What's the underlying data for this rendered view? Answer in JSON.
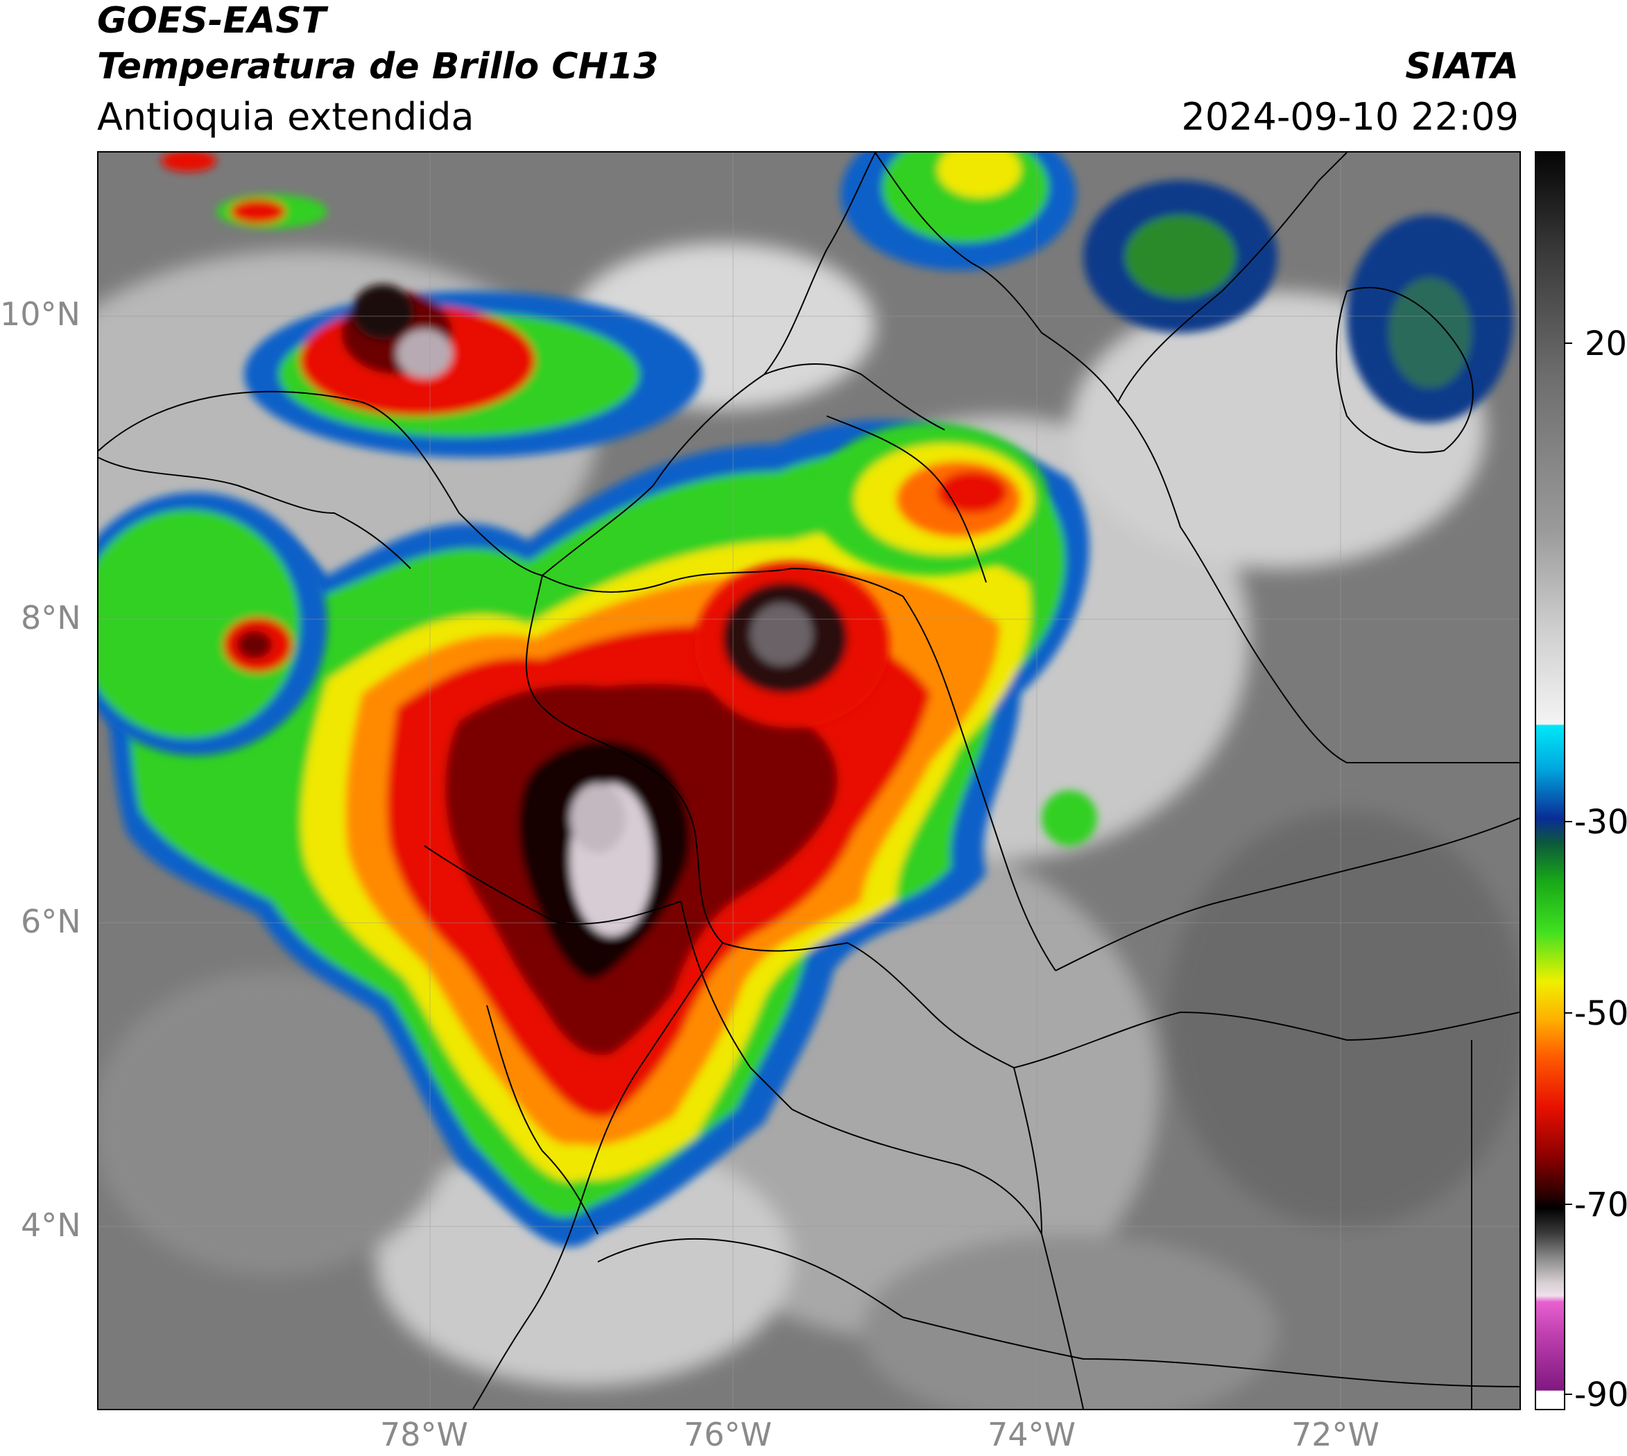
{
  "header": {
    "satellite": "GOES-EAST",
    "product": "Temperatura de Brillo CH13",
    "region": "Antioquia extendida",
    "organization": "SIATA",
    "timestamp": "2024-09-10 22:09"
  },
  "map": {
    "lat_labels": [
      "10°N",
      "8°N",
      "6°N",
      "4°N"
    ],
    "lon_labels": [
      "78°W",
      "76°W",
      "74°W",
      "72°W"
    ],
    "lat_values": [
      10,
      8,
      6,
      4
    ],
    "lon_values": [
      -78,
      -76,
      -74,
      -72
    ]
  },
  "colorbar": {
    "labels": [
      "20",
      "-30",
      "-50",
      "-70",
      "-90"
    ],
    "values": [
      20,
      -30,
      -50,
      -70,
      -90
    ],
    "colors": {
      "warm_gray": "#6e6e6e",
      "cyan": "#00d8f0",
      "blue": "#0a2c96",
      "green": "#18d818",
      "yellow": "#f0f000",
      "orange": "#ff8a00",
      "red": "#e81000",
      "dark_red": "#6a0000",
      "black": "#0a0a0a",
      "light_gray": "#e0d8dc",
      "magenta": "#c040b0"
    }
  }
}
